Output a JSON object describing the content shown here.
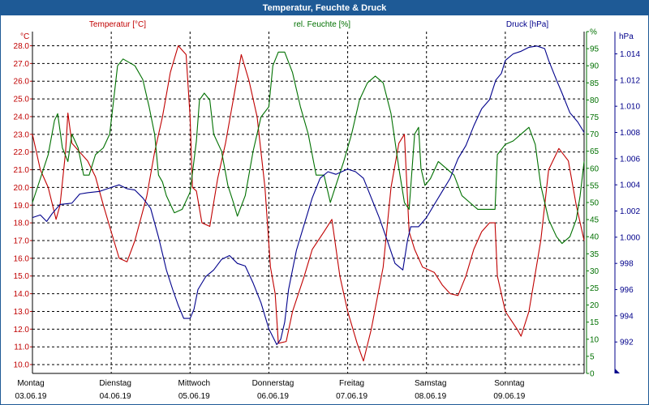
{
  "chart_data": {
    "type": "line",
    "title": "Temperatur, Feuchte & Druck",
    "colors": {
      "temperature": "#c00000",
      "humidity": "#007000",
      "pressure": "#00008b",
      "title_bar": "#1e5a96"
    },
    "axes": {
      "left": {
        "unit": "°C",
        "min": 9.5,
        "max": 28.8,
        "ticks": [
          "10.0",
          "11.0",
          "12.0",
          "13.0",
          "14.0",
          "15.0",
          "16.0",
          "17.0",
          "18.0",
          "19.0",
          "20.0",
          "21.0",
          "22.0",
          "23.0",
          "24.0",
          "25.0",
          "26.0",
          "27.0",
          "28.0"
        ],
        "tick_values": [
          10,
          11,
          12,
          13,
          14,
          15,
          16,
          17,
          18,
          19,
          20,
          21,
          22,
          23,
          24,
          25,
          26,
          27,
          28
        ]
      },
      "middle": {
        "unit": "%",
        "min": 0,
        "max": 100,
        "ticks": [
          "0",
          "5",
          "10",
          "15",
          "20",
          "25",
          "30",
          "35",
          "40",
          "45",
          "50",
          "55",
          "60",
          "65",
          "70",
          "75",
          "80",
          "85",
          "90",
          "95",
          "%"
        ],
        "tick_values": [
          0,
          5,
          10,
          15,
          20,
          25,
          30,
          35,
          40,
          45,
          50,
          55,
          60,
          65,
          70,
          75,
          80,
          85,
          90,
          95,
          100
        ]
      },
      "right": {
        "unit": "hPa",
        "min": 989.6,
        "max": 1015.7,
        "ticks": [
          "992",
          "994",
          "996",
          "998",
          "1.000",
          "1.002",
          "1.004",
          "1.006",
          "1.008",
          "1.010",
          "1.012",
          "1.014"
        ],
        "tick_values": [
          992,
          994,
          996,
          998,
          1000,
          1002,
          1004,
          1006,
          1008,
          1010,
          1012,
          1014
        ]
      }
    },
    "x_range": [
      0,
      7
    ],
    "x_labels": [
      {
        "day": "Montag",
        "date": "03.06.19"
      },
      {
        "day": "Dienstag",
        "date": "04.06.19"
      },
      {
        "day": "Mittwoch",
        "date": "05.06.19"
      },
      {
        "day": "Donnerstag",
        "date": "06.06.19"
      },
      {
        "day": "Freitag",
        "date": "07.06.19"
      },
      {
        "day": "Samstag",
        "date": "08.06.19"
      },
      {
        "day": "Sonntag",
        "date": "09.06.19"
      }
    ],
    "series": [
      {
        "name": "Temperatur [°C]",
        "axis": "left",
        "color": "#c00000",
        "points": [
          [
            0,
            23.0
          ],
          [
            0.1,
            21.0
          ],
          [
            0.2,
            20.0
          ],
          [
            0.3,
            18.2
          ],
          [
            0.35,
            19.0
          ],
          [
            0.42,
            22.0
          ],
          [
            0.45,
            24.2
          ],
          [
            0.5,
            22.5
          ],
          [
            0.6,
            22.0
          ],
          [
            0.7,
            21.5
          ],
          [
            0.8,
            20.6
          ],
          [
            0.9,
            19.0
          ],
          [
            1.0,
            17.5
          ],
          [
            1.1,
            16.0
          ],
          [
            1.2,
            15.8
          ],
          [
            1.3,
            17.0
          ],
          [
            1.45,
            19.5
          ],
          [
            1.55,
            22.0
          ],
          [
            1.65,
            24.0
          ],
          [
            1.75,
            26.5
          ],
          [
            1.85,
            28.0
          ],
          [
            1.95,
            27.5
          ],
          [
            2.0,
            24.0
          ],
          [
            2.03,
            20.0
          ],
          [
            2.08,
            19.8
          ],
          [
            2.15,
            18.0
          ],
          [
            2.25,
            17.8
          ],
          [
            2.35,
            20.5
          ],
          [
            2.45,
            22.5
          ],
          [
            2.55,
            25.0
          ],
          [
            2.65,
            27.5
          ],
          [
            2.75,
            26.0
          ],
          [
            2.85,
            24.0
          ],
          [
            2.95,
            20.0
          ],
          [
            3.02,
            15.5
          ],
          [
            3.08,
            14.0
          ],
          [
            3.12,
            11.2
          ],
          [
            3.22,
            11.3
          ],
          [
            3.3,
            13.0
          ],
          [
            3.45,
            15.0
          ],
          [
            3.55,
            16.5
          ],
          [
            3.7,
            17.5
          ],
          [
            3.8,
            18.2
          ],
          [
            3.9,
            15.0
          ],
          [
            4.0,
            13.0
          ],
          [
            4.12,
            11.2
          ],
          [
            4.2,
            10.2
          ],
          [
            4.3,
            12.0
          ],
          [
            4.45,
            15.5
          ],
          [
            4.55,
            20.0
          ],
          [
            4.65,
            22.5
          ],
          [
            4.72,
            23.0
          ],
          [
            4.78,
            17.5
          ],
          [
            4.85,
            16.5
          ],
          [
            4.95,
            15.5
          ],
          [
            5.1,
            15.2
          ],
          [
            5.2,
            14.5
          ],
          [
            5.3,
            14.0
          ],
          [
            5.4,
            13.9
          ],
          [
            5.5,
            15.0
          ],
          [
            5.6,
            16.5
          ],
          [
            5.7,
            17.5
          ],
          [
            5.8,
            18.0
          ],
          [
            5.87,
            18.0
          ],
          [
            5.9,
            15.0
          ],
          [
            6.0,
            13.0
          ],
          [
            6.15,
            12.0
          ],
          [
            6.2,
            11.6
          ],
          [
            6.3,
            13.0
          ],
          [
            6.45,
            17.0
          ],
          [
            6.55,
            21.0
          ],
          [
            6.68,
            22.2
          ],
          [
            6.8,
            21.5
          ],
          [
            6.9,
            19.0
          ],
          [
            7.0,
            17.0
          ]
        ]
      },
      {
        "name": "rel. Feuchte [%]",
        "axis": "middle",
        "color": "#007000",
        "points": [
          [
            0,
            50
          ],
          [
            0.1,
            57
          ],
          [
            0.2,
            64
          ],
          [
            0.28,
            74
          ],
          [
            0.32,
            76
          ],
          [
            0.38,
            66
          ],
          [
            0.45,
            62
          ],
          [
            0.5,
            70
          ],
          [
            0.58,
            66
          ],
          [
            0.65,
            58
          ],
          [
            0.72,
            58
          ],
          [
            0.8,
            64
          ],
          [
            0.9,
            66
          ],
          [
            0.98,
            70
          ],
          [
            1.03,
            80
          ],
          [
            1.08,
            90
          ],
          [
            1.15,
            92
          ],
          [
            1.3,
            90
          ],
          [
            1.4,
            86
          ],
          [
            1.48,
            78
          ],
          [
            1.55,
            70
          ],
          [
            1.6,
            58
          ],
          [
            1.65,
            56
          ],
          [
            1.7,
            52
          ],
          [
            1.8,
            47
          ],
          [
            1.9,
            48
          ],
          [
            2.0,
            53
          ],
          [
            2.08,
            68
          ],
          [
            2.12,
            80
          ],
          [
            2.18,
            82
          ],
          [
            2.25,
            80
          ],
          [
            2.3,
            70
          ],
          [
            2.4,
            65
          ],
          [
            2.48,
            55
          ],
          [
            2.55,
            50
          ],
          [
            2.6,
            46
          ],
          [
            2.7,
            52
          ],
          [
            2.8,
            65
          ],
          [
            2.9,
            75
          ],
          [
            3.0,
            78
          ],
          [
            3.05,
            90
          ],
          [
            3.12,
            94
          ],
          [
            3.2,
            94
          ],
          [
            3.3,
            88
          ],
          [
            3.4,
            78
          ],
          [
            3.5,
            70
          ],
          [
            3.6,
            58
          ],
          [
            3.7,
            58
          ],
          [
            3.78,
            50
          ],
          [
            3.85,
            55
          ],
          [
            3.95,
            62
          ],
          [
            4.05,
            70
          ],
          [
            4.15,
            80
          ],
          [
            4.25,
            85
          ],
          [
            4.35,
            87
          ],
          [
            4.45,
            85
          ],
          [
            4.55,
            76
          ],
          [
            4.65,
            60
          ],
          [
            4.72,
            50
          ],
          [
            4.78,
            48
          ],
          [
            4.85,
            70
          ],
          [
            4.9,
            72
          ],
          [
            4.93,
            60
          ],
          [
            4.98,
            55
          ],
          [
            5.05,
            57
          ],
          [
            5.15,
            62
          ],
          [
            5.25,
            60
          ],
          [
            5.35,
            58
          ],
          [
            5.45,
            52
          ],
          [
            5.55,
            50
          ],
          [
            5.65,
            48
          ],
          [
            5.72,
            48
          ],
          [
            5.8,
            48
          ],
          [
            5.87,
            48
          ],
          [
            5.9,
            64
          ],
          [
            6.0,
            67
          ],
          [
            6.1,
            68
          ],
          [
            6.2,
            70
          ],
          [
            6.3,
            72
          ],
          [
            6.38,
            67
          ],
          [
            6.45,
            55
          ],
          [
            6.55,
            45
          ],
          [
            6.65,
            40
          ],
          [
            6.72,
            38
          ],
          [
            6.82,
            40
          ],
          [
            6.9,
            45
          ],
          [
            6.95,
            52
          ],
          [
            7.0,
            62
          ]
        ]
      },
      {
        "name": "Druck [hPa]",
        "axis": "right",
        "color": "#00008b",
        "points": [
          [
            0,
            1001.5
          ],
          [
            0.1,
            1001.7
          ],
          [
            0.18,
            1001.2
          ],
          [
            0.25,
            1001.8
          ],
          [
            0.35,
            1002.5
          ],
          [
            0.5,
            1002.6
          ],
          [
            0.6,
            1003.3
          ],
          [
            0.7,
            1003.4
          ],
          [
            0.85,
            1003.5
          ],
          [
            1.0,
            1003.8
          ],
          [
            1.1,
            1004.0
          ],
          [
            1.2,
            1003.7
          ],
          [
            1.3,
            1003.6
          ],
          [
            1.4,
            1003.0
          ],
          [
            1.5,
            1002.2
          ],
          [
            1.6,
            1000.0
          ],
          [
            1.7,
            997.5
          ],
          [
            1.78,
            996.0
          ],
          [
            1.85,
            994.8
          ],
          [
            1.92,
            993.8
          ],
          [
            2.0,
            993.8
          ],
          [
            2.05,
            994.5
          ],
          [
            2.1,
            996.0
          ],
          [
            2.2,
            997.0
          ],
          [
            2.3,
            997.5
          ],
          [
            2.4,
            998.3
          ],
          [
            2.5,
            998.6
          ],
          [
            2.6,
            998.0
          ],
          [
            2.7,
            997.8
          ],
          [
            2.8,
            996.5
          ],
          [
            2.9,
            995.0
          ],
          [
            3.0,
            993.0
          ],
          [
            3.1,
            991.8
          ],
          [
            3.15,
            992.2
          ],
          [
            3.2,
            993.5
          ],
          [
            3.25,
            996.0
          ],
          [
            3.35,
            999.0
          ],
          [
            3.45,
            1001.0
          ],
          [
            3.55,
            1003.0
          ],
          [
            3.65,
            1004.5
          ],
          [
            3.75,
            1005.0
          ],
          [
            3.85,
            1004.8
          ],
          [
            4.0,
            1005.2
          ],
          [
            4.1,
            1005.0
          ],
          [
            4.2,
            1004.5
          ],
          [
            4.3,
            1003.0
          ],
          [
            4.4,
            1001.5
          ],
          [
            4.5,
            999.8
          ],
          [
            4.6,
            998.0
          ],
          [
            4.7,
            997.5
          ],
          [
            4.76,
            999.8
          ],
          [
            4.8,
            1000.8
          ],
          [
            4.9,
            1000.8
          ],
          [
            5.0,
            1001.5
          ],
          [
            5.1,
            1002.5
          ],
          [
            5.2,
            1003.5
          ],
          [
            5.3,
            1004.5
          ],
          [
            5.4,
            1006.0
          ],
          [
            5.5,
            1007.0
          ],
          [
            5.6,
            1008.5
          ],
          [
            5.7,
            1009.8
          ],
          [
            5.8,
            1010.5
          ],
          [
            5.88,
            1012.0
          ],
          [
            5.95,
            1012.5
          ],
          [
            6.0,
            1013.5
          ],
          [
            6.1,
            1014.0
          ],
          [
            6.2,
            1014.2
          ],
          [
            6.3,
            1014.5
          ],
          [
            6.4,
            1014.6
          ],
          [
            6.5,
            1014.4
          ],
          [
            6.55,
            1013.5
          ],
          [
            6.65,
            1012.0
          ],
          [
            6.72,
            1011.0
          ],
          [
            6.82,
            1009.5
          ],
          [
            6.92,
            1008.8
          ],
          [
            7.0,
            1008.0
          ]
        ]
      }
    ]
  }
}
